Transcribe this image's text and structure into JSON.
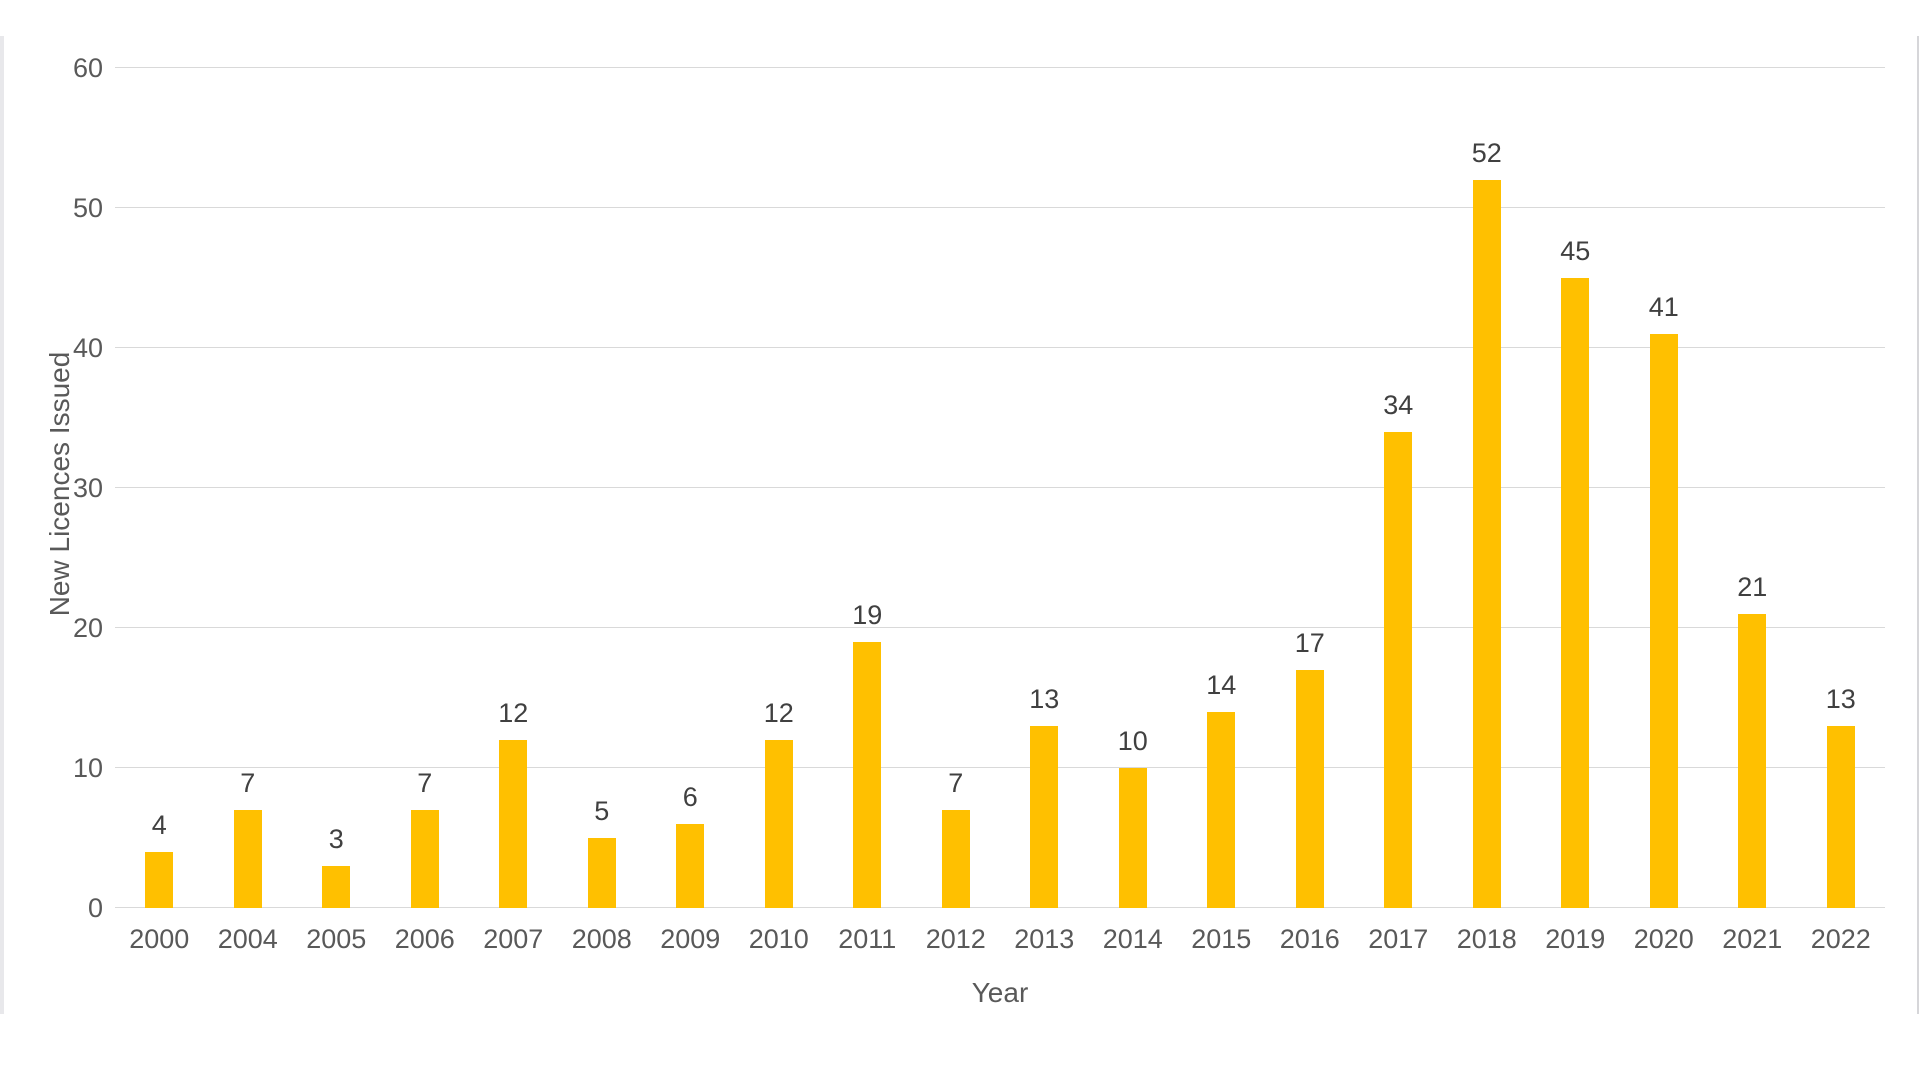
{
  "chart_data": {
    "type": "bar",
    "title": "",
    "categories": [
      "2000",
      "2004",
      "2005",
      "2006",
      "2007",
      "2008",
      "2009",
      "2010",
      "2011",
      "2012",
      "2013",
      "2014",
      "2015",
      "2016",
      "2017",
      "2018",
      "2019",
      "2020",
      "2021",
      "2022"
    ],
    "values": [
      4,
      7,
      3,
      7,
      12,
      5,
      6,
      12,
      19,
      7,
      13,
      10,
      14,
      17,
      34,
      52,
      45,
      41,
      21,
      13
    ],
    "xlabel": "Year",
    "ylabel": "New Licences Issued",
    "ylim": [
      0,
      60
    ],
    "yticks": [
      0,
      10,
      20,
      30,
      40,
      50,
      60
    ],
    "grid": true,
    "legend": false,
    "data_labels_shown": true,
    "colors": {
      "bar": "#FFC000",
      "gridline": "#D9D9D9",
      "axis_text": "#595959",
      "data_label": "#404040"
    }
  }
}
